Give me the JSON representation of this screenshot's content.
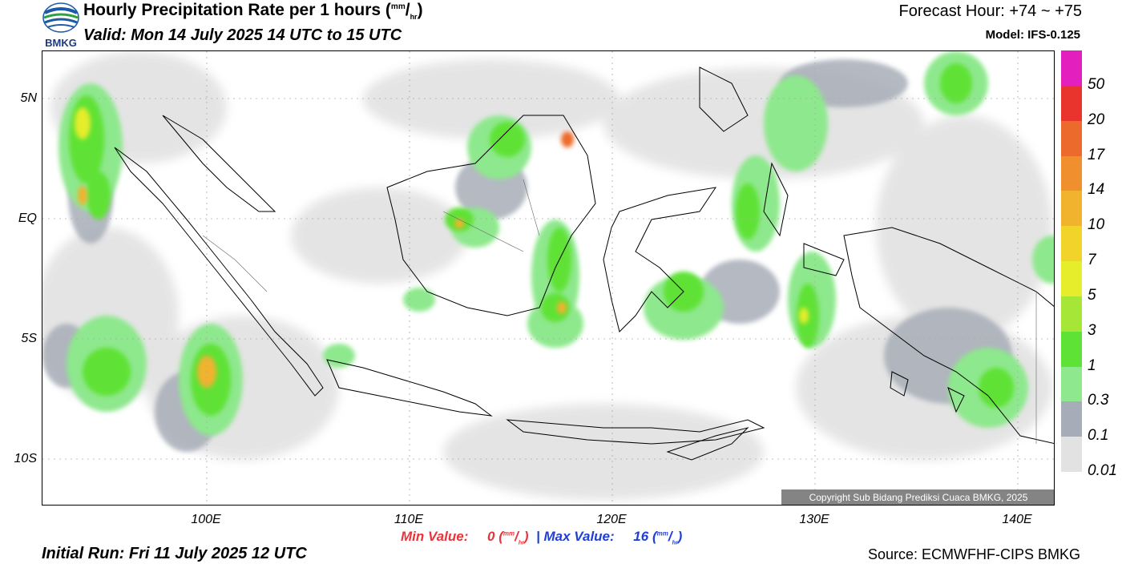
{
  "header": {
    "title": "Hourly Precipitation Rate per 1 hours",
    "title_unit_num": "mm",
    "title_unit_den": "hr",
    "valid": "Valid: Mon 14 July 2025 14 UTC to 15 UTC",
    "forecast_hour": "Forecast Hour: +74 ~ +75",
    "model": "Model: IFS-0.125",
    "logo_text": "BMKG"
  },
  "map": {
    "lat_labels": [
      "5N",
      "EQ",
      "5S",
      "10S"
    ],
    "lon_labels": [
      "100E",
      "110E",
      "120E",
      "130E",
      "140E"
    ],
    "copyright": "Copyright Sub Bidang Prediksi Cuaca BMKG, 2025"
  },
  "legend": {
    "labels": [
      "50",
      "20",
      "17",
      "14",
      "10",
      "7",
      "5",
      "3",
      "1",
      "0.3",
      "0.1",
      "0.01"
    ],
    "colors": [
      "#e31fbe",
      "#e8342c",
      "#ec6a2c",
      "#ef8f2e",
      "#f1b22e",
      "#f2d32a",
      "#e6ed2a",
      "#a6e637",
      "#5ee236",
      "#8ee88d",
      "#a7adb8",
      "#e2e2e2"
    ]
  },
  "footer": {
    "min_label": "Min Value:",
    "min_value": "0",
    "max_label": "Max Value:",
    "max_value": "16",
    "separator": "|",
    "unit_num": "mm",
    "unit_den": "hr",
    "initial_run": "Initial Run: Fri 11 July 2025 12 UTC",
    "source": "Source: ECMWFHF-CIPS BMKG"
  }
}
